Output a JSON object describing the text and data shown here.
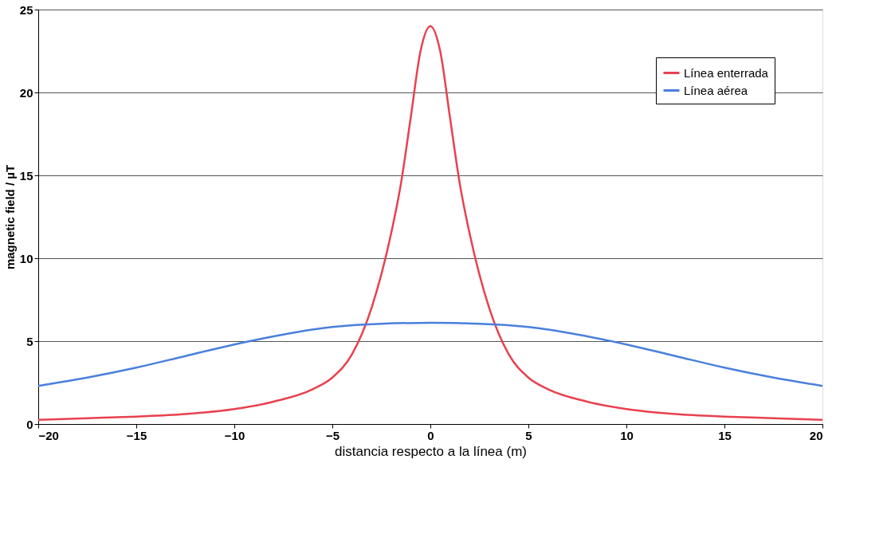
{
  "chart_data": {
    "type": "line",
    "xlabel": "distancia respecto a la línea (m)",
    "ylabel": "magnetic field  /  µT",
    "xlim": [
      -20,
      20
    ],
    "xticks": [
      -20,
      -15,
      -10,
      -5,
      0,
      5,
      10,
      15,
      20
    ],
    "ylim": [
      0,
      25
    ],
    "yticks": [
      0,
      5,
      10,
      15,
      20,
      25
    ],
    "grid": "y",
    "legend": "top right",
    "series": [
      {
        "name": "Línea enterrada",
        "color": "#e8414f",
        "x": [
          -20,
          -17.5,
          -15,
          -12.5,
          -10,
          -8,
          -6,
          -5,
          -4,
          -3,
          -2,
          -1.5,
          -1,
          -0.5,
          0,
          0.5,
          1,
          1.5,
          2,
          3,
          4,
          5,
          6,
          8,
          10,
          12.5,
          15,
          17.5,
          20
        ],
        "values": [
          0.25,
          0.35,
          0.45,
          0.6,
          0.9,
          1.35,
          2.1,
          2.8,
          4.2,
          7.0,
          11.5,
          14.5,
          18.5,
          22.5,
          24,
          22.5,
          18.5,
          14.5,
          11.5,
          7.0,
          4.2,
          2.8,
          2.1,
          1.35,
          0.9,
          0.6,
          0.45,
          0.35,
          0.25
        ]
      },
      {
        "name": "Línea aérea",
        "color": "#4a7fdc",
        "x": [
          -20,
          -17.5,
          -15,
          -12.5,
          -10,
          -7.5,
          -5,
          -2.5,
          0,
          2.5,
          5,
          7.5,
          10,
          12.5,
          15,
          17.5,
          20
        ],
        "values": [
          2.3,
          2.8,
          3.4,
          4.1,
          4.8,
          5.4,
          5.85,
          6.05,
          6.1,
          6.05,
          5.85,
          5.4,
          4.8,
          4.1,
          3.4,
          2.8,
          2.3
        ]
      }
    ]
  }
}
